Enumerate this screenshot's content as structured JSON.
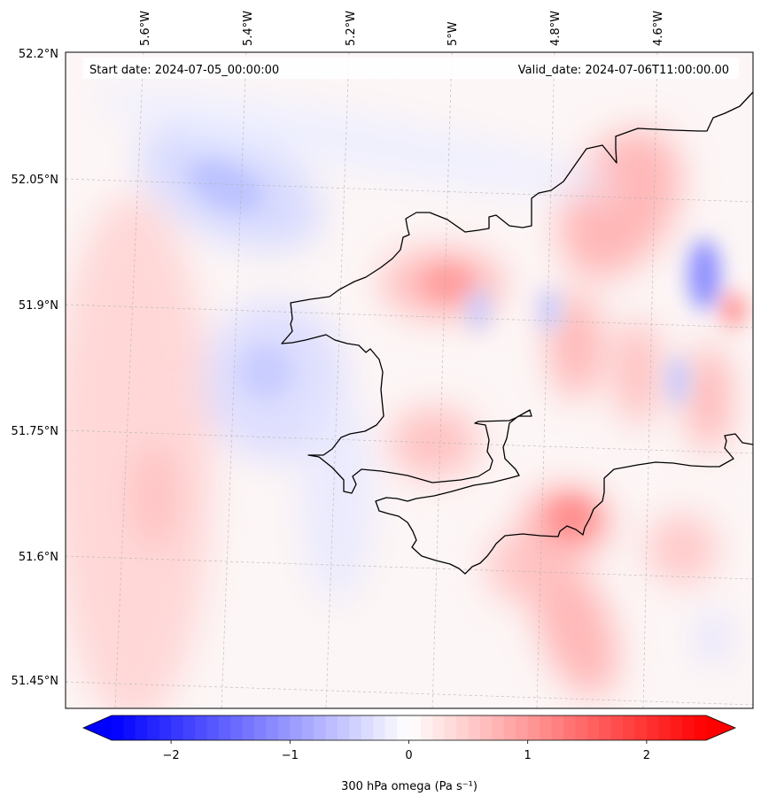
{
  "map": {
    "header": {
      "start_label": "Start date: 2024-07-05_00:00:00",
      "valid_label": "Valid_date: 2024-07-06T11:00:00.00"
    },
    "lon_labels": [
      "5.6°W",
      "5.4°W",
      "5.2°W",
      "5°W",
      "4.8°W",
      "4.6°W"
    ],
    "lat_labels": [
      "52.2°N",
      "52.05°N",
      "51.9°N",
      "51.75°N",
      "51.6°N",
      "51.45°N"
    ],
    "colorbar": {
      "ticks": [
        -2,
        -1,
        0,
        1,
        2
      ],
      "tick_labels": [
        "−2",
        "−1",
        "0",
        "1",
        "2"
      ],
      "range": [
        -2.5,
        2.5
      ],
      "label": "300 hPa omega (Pa s⁻¹)",
      "colors": {
        "low": "#0000ff",
        "mid": "#ffffff",
        "high": "#ff0000"
      },
      "extend": "both"
    },
    "field_blobs": [
      {
        "sign": "neg",
        "strength": 0.35,
        "note_area": "52.05N 5.4W"
      },
      {
        "sign": "neg",
        "strength": 0.3,
        "note_area": "51.83N 5.3W"
      },
      {
        "sign": "neg",
        "strength": 0.7,
        "note_area": "51.93N 4.55W"
      },
      {
        "sign": "pos",
        "strength": 0.5,
        "note_area": "51.65N 4.75W"
      },
      {
        "sign": "pos",
        "strength": 0.4,
        "note_area": "52.0N 4.7W"
      },
      {
        "sign": "pos",
        "strength": 0.45,
        "note_area": "51.9N 4.95W"
      }
    ],
    "gridlines": true
  }
}
